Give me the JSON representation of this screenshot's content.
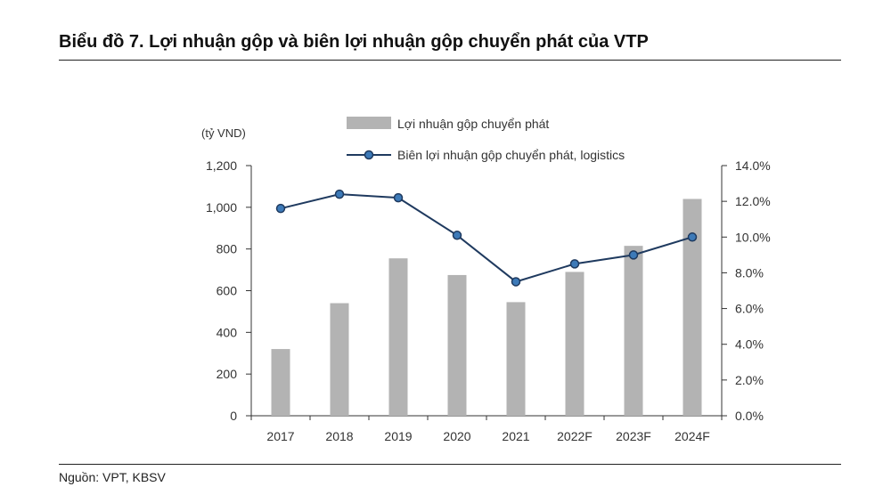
{
  "title": "Biểu đồ 7. Lợi nhuận gộp và biên lợi nhuận gộp chuyển phát của VTP",
  "source": "Nguồn: VPT, KBSV",
  "colors": {
    "bar": "#b3b3b3",
    "line": "#1f3a5f",
    "marker_fill": "#3d7ab8",
    "axis": "#333333"
  },
  "chart_data": {
    "type": "bar+line",
    "categories": [
      "2017",
      "2018",
      "2019",
      "2020",
      "2021",
      "2022F",
      "2023F",
      "2024F"
    ],
    "y_left": {
      "label": "(tỷ VND)",
      "range": [
        0,
        1200
      ],
      "ticks": [
        "0",
        "200",
        "400",
        "600",
        "800",
        "1,000",
        "1,200"
      ]
    },
    "y_right": {
      "range": [
        0,
        14
      ],
      "ticks": [
        "0.0%",
        "2.0%",
        "4.0%",
        "6.0%",
        "8.0%",
        "10.0%",
        "12.0%",
        "14.0%"
      ]
    },
    "series": [
      {
        "name": "Lợi nhuận gộp chuyển phát",
        "type": "bar",
        "axis": "left",
        "values": [
          320,
          540,
          755,
          675,
          545,
          690,
          815,
          1040
        ]
      },
      {
        "name": "Biên lợi nhuận gộp chuyển phát, logistics",
        "type": "line",
        "axis": "right",
        "values": [
          11.6,
          12.4,
          12.2,
          10.1,
          7.5,
          8.5,
          9.0,
          10.0
        ]
      }
    ],
    "grid": false,
    "legend": "top"
  }
}
